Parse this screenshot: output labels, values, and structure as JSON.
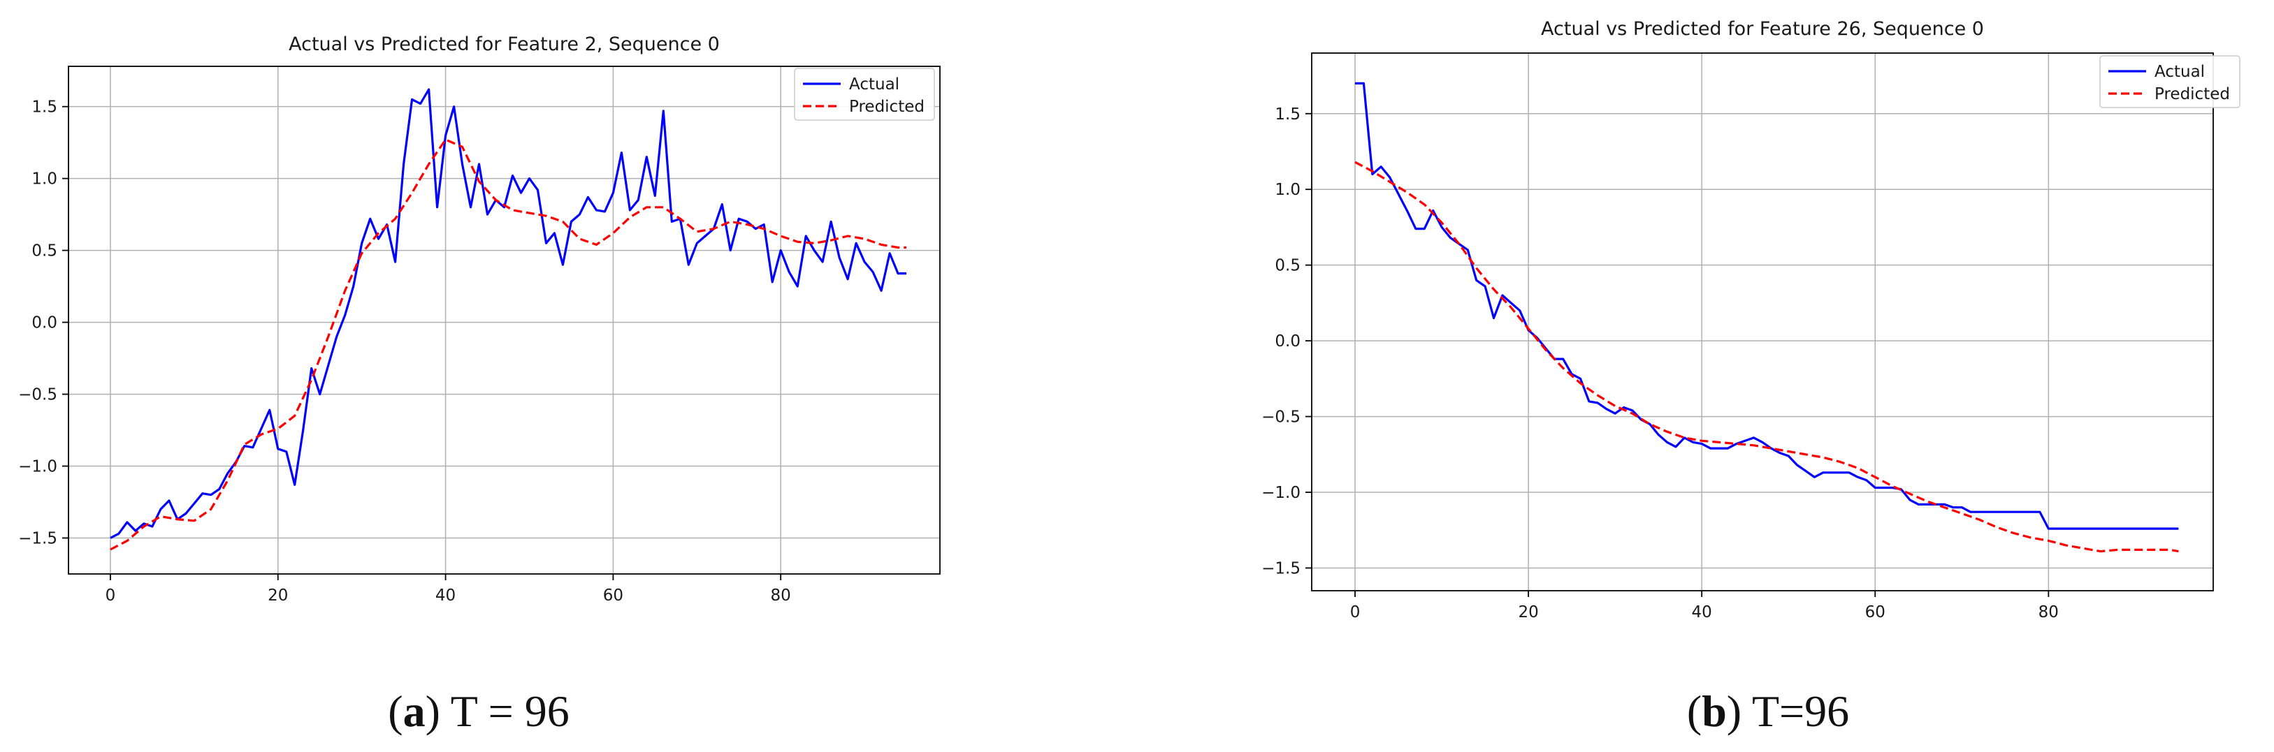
{
  "chart_data": [
    {
      "type": "line",
      "title": "Actual vs Predicted for Feature 2, Sequence 0",
      "caption_letter": "a",
      "caption_text": "T = 96",
      "xlim": [
        -5,
        99
      ],
      "ylim": [
        -1.75,
        1.78
      ],
      "xticks": [
        0,
        20,
        40,
        60,
        80
      ],
      "yticks": [
        -1.5,
        -1.0,
        -0.5,
        0.0,
        0.5,
        1.0,
        1.5
      ],
      "ytick_labels": [
        "−1.5",
        "−1.0",
        "−0.5",
        "0.0",
        "0.5",
        "1.0",
        "1.5"
      ],
      "grid": true,
      "legend": "top-right",
      "series": [
        {
          "name": "Actual",
          "color": "#0000ff",
          "style": "solid",
          "x": [
            0,
            1,
            2,
            3,
            4,
            5,
            6,
            7,
            8,
            9,
            10,
            11,
            12,
            13,
            14,
            15,
            16,
            17,
            18,
            19,
            20,
            21,
            22,
            23,
            24,
            25,
            26,
            27,
            28,
            29,
            30,
            31,
            32,
            33,
            34,
            35,
            36,
            37,
            38,
            39,
            40,
            41,
            42,
            43,
            44,
            45,
            46,
            47,
            48,
            49,
            50,
            51,
            52,
            53,
            54,
            55,
            56,
            57,
            58,
            59,
            60,
            61,
            62,
            63,
            64,
            65,
            66,
            67,
            68,
            69,
            70,
            71,
            72,
            73,
            74,
            75,
            76,
            77,
            78,
            79,
            80,
            81,
            82,
            83,
            84,
            85,
            86,
            87,
            88,
            89,
            90,
            91,
            92,
            93,
            94,
            95
          ],
          "values": [
            -1.5,
            -1.47,
            -1.39,
            -1.45,
            -1.4,
            -1.42,
            -1.3,
            -1.24,
            -1.37,
            -1.33,
            -1.26,
            -1.19,
            -1.2,
            -1.16,
            -1.05,
            -0.97,
            -0.86,
            -0.87,
            -0.74,
            -0.61,
            -0.88,
            -0.9,
            -1.13,
            -0.75,
            -0.32,
            -0.5,
            -0.3,
            -0.1,
            0.05,
            0.25,
            0.55,
            0.72,
            0.58,
            0.68,
            0.42,
            1.1,
            1.55,
            1.52,
            1.62,
            0.8,
            1.3,
            1.5,
            1.1,
            0.8,
            1.1,
            0.75,
            0.85,
            0.8,
            1.02,
            0.9,
            1.0,
            0.92,
            0.55,
            0.62,
            0.4,
            0.7,
            0.75,
            0.87,
            0.78,
            0.77,
            0.9,
            1.18,
            0.78,
            0.85,
            1.15,
            0.88,
            1.47,
            0.7,
            0.72,
            0.4,
            0.55,
            0.6,
            0.65,
            0.82,
            0.5,
            0.72,
            0.7,
            0.65,
            0.68,
            0.28,
            0.5,
            0.35,
            0.25,
            0.6,
            0.5,
            0.42,
            0.7,
            0.45,
            0.3,
            0.55,
            0.42,
            0.35,
            0.22,
            0.48,
            0.34,
            0.34
          ]
        },
        {
          "name": "Predicted",
          "color": "#ff0000",
          "style": "dashed",
          "x": [
            0,
            2,
            4,
            6,
            8,
            10,
            12,
            14,
            16,
            18,
            20,
            22,
            24,
            26,
            28,
            30,
            32,
            34,
            36,
            38,
            40,
            42,
            44,
            46,
            48,
            50,
            52,
            54,
            56,
            58,
            60,
            62,
            64,
            66,
            68,
            70,
            72,
            74,
            76,
            78,
            80,
            82,
            84,
            86,
            88,
            90,
            92,
            94,
            95
          ],
          "values": [
            -1.58,
            -1.52,
            -1.42,
            -1.35,
            -1.37,
            -1.38,
            -1.3,
            -1.1,
            -0.85,
            -0.78,
            -0.74,
            -0.65,
            -0.4,
            -0.1,
            0.22,
            0.48,
            0.62,
            0.72,
            0.9,
            1.1,
            1.27,
            1.22,
            0.98,
            0.85,
            0.78,
            0.76,
            0.74,
            0.7,
            0.58,
            0.54,
            0.62,
            0.73,
            0.8,
            0.8,
            0.72,
            0.63,
            0.65,
            0.7,
            0.68,
            0.65,
            0.6,
            0.56,
            0.55,
            0.57,
            0.6,
            0.58,
            0.54,
            0.52,
            0.52
          ]
        }
      ]
    },
    {
      "type": "line",
      "title": "Actual vs Predicted for Feature 26, Sequence 0",
      "caption_letter": "b",
      "caption_text": "T=96",
      "xlim": [
        -5,
        99
      ],
      "ylim": [
        -1.65,
        1.9
      ],
      "xticks": [
        0,
        20,
        40,
        60,
        80
      ],
      "yticks": [
        -1.5,
        -1.0,
        -0.5,
        0.0,
        0.5,
        1.0,
        1.5
      ],
      "ytick_labels": [
        "−1.5",
        "−1.0",
        "−0.5",
        "0.0",
        "0.5",
        "1.0",
        "1.5"
      ],
      "grid": true,
      "legend": "top-right",
      "series": [
        {
          "name": "Actual",
          "color": "#0000ff",
          "style": "solid",
          "x": [
            0,
            1,
            2,
            3,
            4,
            5,
            6,
            7,
            8,
            9,
            10,
            11,
            12,
            13,
            14,
            15,
            16,
            17,
            18,
            19,
            20,
            21,
            22,
            23,
            24,
            25,
            26,
            27,
            28,
            29,
            30,
            31,
            32,
            33,
            34,
            35,
            36,
            37,
            38,
            39,
            40,
            41,
            42,
            43,
            44,
            45,
            46,
            47,
            48,
            49,
            50,
            51,
            52,
            53,
            54,
            55,
            56,
            57,
            58,
            59,
            60,
            61,
            62,
            63,
            64,
            65,
            66,
            67,
            68,
            69,
            70,
            71,
            72,
            73,
            74,
            75,
            76,
            77,
            78,
            79,
            80,
            81,
            82,
            83,
            84,
            85,
            86,
            87,
            88,
            89,
            90,
            91,
            92,
            93,
            94,
            95
          ],
          "values": [
            1.7,
            1.7,
            1.1,
            1.15,
            1.08,
            0.97,
            0.86,
            0.74,
            0.74,
            0.86,
            0.75,
            0.68,
            0.64,
            0.6,
            0.4,
            0.36,
            0.15,
            0.3,
            0.25,
            0.2,
            0.07,
            0.02,
            -0.05,
            -0.12,
            -0.12,
            -0.22,
            -0.25,
            -0.4,
            -0.41,
            -0.45,
            -0.48,
            -0.44,
            -0.46,
            -0.52,
            -0.55,
            -0.62,
            -0.67,
            -0.7,
            -0.64,
            -0.67,
            -0.68,
            -0.71,
            -0.71,
            -0.71,
            -0.68,
            -0.66,
            -0.64,
            -0.67,
            -0.71,
            -0.74,
            -0.76,
            -0.82,
            -0.86,
            -0.9,
            -0.87,
            -0.87,
            -0.87,
            -0.87,
            -0.9,
            -0.92,
            -0.97,
            -0.97,
            -0.97,
            -0.98,
            -1.05,
            -1.08,
            -1.08,
            -1.08,
            -1.08,
            -1.1,
            -1.1,
            -1.13,
            -1.13,
            -1.13,
            -1.13,
            -1.13,
            -1.13,
            -1.13,
            -1.13,
            -1.13,
            -1.24,
            -1.24,
            -1.24,
            -1.24,
            -1.24,
            -1.24,
            -1.24,
            -1.24,
            -1.24,
            -1.24,
            -1.24,
            -1.24,
            -1.24,
            -1.24,
            -1.24,
            -1.24
          ]
        },
        {
          "name": "Predicted",
          "color": "#ff0000",
          "style": "dashed",
          "x": [
            0,
            2,
            4,
            6,
            8,
            10,
            12,
            14,
            16,
            18,
            20,
            22,
            24,
            26,
            28,
            30,
            32,
            34,
            36,
            38,
            40,
            42,
            44,
            46,
            48,
            50,
            52,
            54,
            56,
            58,
            60,
            62,
            64,
            66,
            68,
            70,
            72,
            74,
            76,
            78,
            80,
            82,
            84,
            86,
            88,
            90,
            92,
            94,
            95
          ],
          "values": [
            1.18,
            1.12,
            1.05,
            0.98,
            0.9,
            0.78,
            0.64,
            0.48,
            0.34,
            0.22,
            0.08,
            -0.06,
            -0.18,
            -0.28,
            -0.36,
            -0.43,
            -0.48,
            -0.55,
            -0.6,
            -0.64,
            -0.66,
            -0.67,
            -0.68,
            -0.69,
            -0.71,
            -0.73,
            -0.75,
            -0.77,
            -0.8,
            -0.84,
            -0.9,
            -0.96,
            -1.01,
            -1.06,
            -1.1,
            -1.14,
            -1.18,
            -1.23,
            -1.27,
            -1.3,
            -1.32,
            -1.35,
            -1.37,
            -1.39,
            -1.38,
            -1.38,
            -1.38,
            -1.38,
            -1.39
          ]
        }
      ]
    }
  ]
}
